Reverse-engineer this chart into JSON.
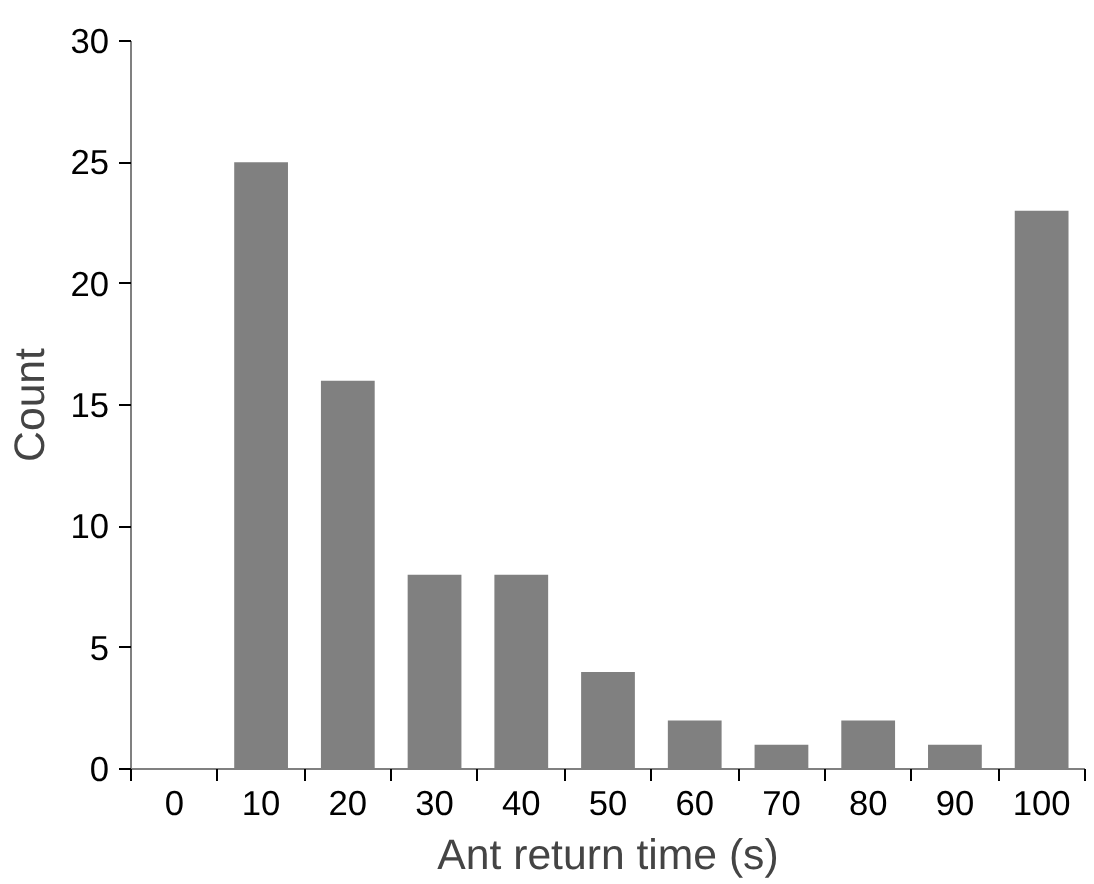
{
  "chart_data": {
    "type": "bar",
    "xlabel": "Ant return time (s)",
    "ylabel": "Count",
    "categories": [
      "0",
      "10",
      "20",
      "30",
      "40",
      "50",
      "60",
      "70",
      "80",
      "90",
      "100"
    ],
    "values": [
      0,
      25,
      16,
      8,
      8,
      4,
      2,
      1,
      2,
      1,
      23
    ],
    "color": "#808080",
    "ylim": [
      0,
      30
    ],
    "yticks": [
      0,
      5,
      10,
      15,
      20,
      25,
      30
    ],
    "grid": false
  }
}
